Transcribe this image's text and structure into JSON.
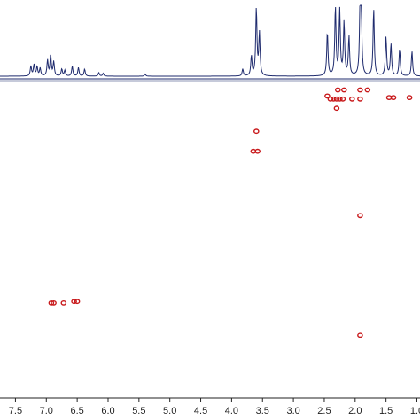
{
  "chart_data": {
    "type": "scatter",
    "title": "",
    "xlabel": "",
    "ylabel": "",
    "x_axis_reversed": true,
    "xlim": [
      7.75,
      0.95
    ],
    "grid": false,
    "legend": "none",
    "x_ticks": [
      "7.5",
      "7.0",
      "6.5",
      "6.0",
      "5.5",
      "5.0",
      "4.5",
      "4.0",
      "3.5",
      "3.0",
      "2.5",
      "2.0",
      "1.5",
      "1.0"
    ],
    "x_tick_values": [
      7.5,
      7.0,
      6.5,
      6.0,
      5.5,
      5.0,
      4.5,
      4.0,
      3.5,
      3.0,
      2.5,
      2.0,
      1.5,
      1.0
    ],
    "projection_1d": {
      "color": "#1f2b6e",
      "peaks": [
        {
          "ppm": 7.25,
          "height": 0.14
        },
        {
          "ppm": 7.2,
          "height": 0.16
        },
        {
          "ppm": 7.15,
          "height": 0.13
        },
        {
          "ppm": 7.1,
          "height": 0.11
        },
        {
          "ppm": 6.98,
          "height": 0.22
        },
        {
          "ppm": 6.93,
          "height": 0.3
        },
        {
          "ppm": 6.88,
          "height": 0.2
        },
        {
          "ppm": 6.75,
          "height": 0.1
        },
        {
          "ppm": 6.7,
          "height": 0.08
        },
        {
          "ppm": 6.58,
          "height": 0.14
        },
        {
          "ppm": 6.48,
          "height": 0.12
        },
        {
          "ppm": 6.38,
          "height": 0.1
        },
        {
          "ppm": 6.15,
          "height": 0.05
        },
        {
          "ppm": 6.08,
          "height": 0.04
        },
        {
          "ppm": 5.4,
          "height": 0.03
        },
        {
          "ppm": 3.82,
          "height": 0.1
        },
        {
          "ppm": 3.68,
          "height": 0.28
        },
        {
          "ppm": 3.6,
          "height": 0.95
        },
        {
          "ppm": 3.55,
          "height": 0.6
        },
        {
          "ppm": 2.45,
          "height": 0.62
        },
        {
          "ppm": 2.32,
          "height": 0.97
        },
        {
          "ppm": 2.25,
          "height": 0.92
        },
        {
          "ppm": 2.18,
          "height": 0.75
        },
        {
          "ppm": 2.1,
          "height": 0.55
        },
        {
          "ppm": 1.92,
          "height": 0.97
        },
        {
          "ppm": 1.9,
          "height": 0.72
        },
        {
          "ppm": 1.7,
          "height": 0.95
        },
        {
          "ppm": 1.5,
          "height": 0.55
        },
        {
          "ppm": 1.42,
          "height": 0.45
        },
        {
          "ppm": 1.28,
          "height": 0.38
        },
        {
          "ppm": 1.08,
          "height": 0.35
        }
      ]
    },
    "cross_peaks": {
      "color": "#c8191b",
      "points": [
        {
          "x": 6.92,
          "y": 0.705
        },
        {
          "x": 6.88,
          "y": 0.705
        },
        {
          "x": 6.72,
          "y": 0.705
        },
        {
          "x": 6.55,
          "y": 0.7
        },
        {
          "x": 6.5,
          "y": 0.7
        },
        {
          "x": 3.65,
          "y": 0.21
        },
        {
          "x": 3.58,
          "y": 0.21
        },
        {
          "x": 3.6,
          "y": 0.145
        },
        {
          "x": 2.45,
          "y": 0.03
        },
        {
          "x": 2.4,
          "y": 0.04
        },
        {
          "x": 2.35,
          "y": 0.04
        },
        {
          "x": 2.3,
          "y": 0.04
        },
        {
          "x": 2.25,
          "y": 0.04
        },
        {
          "x": 2.2,
          "y": 0.04
        },
        {
          "x": 2.28,
          "y": 0.01
        },
        {
          "x": 2.18,
          "y": 0.01
        },
        {
          "x": 2.05,
          "y": 0.04
        },
        {
          "x": 1.92,
          "y": 0.04
        },
        {
          "x": 1.92,
          "y": 0.01
        },
        {
          "x": 1.8,
          "y": 0.01
        },
        {
          "x": 1.45,
          "y": 0.035
        },
        {
          "x": 1.38,
          "y": 0.035
        },
        {
          "x": 1.12,
          "y": 0.035
        },
        {
          "x": 2.3,
          "y": 0.07
        },
        {
          "x": 1.92,
          "y": 0.42
        },
        {
          "x": 1.92,
          "y": 0.81
        }
      ]
    }
  }
}
